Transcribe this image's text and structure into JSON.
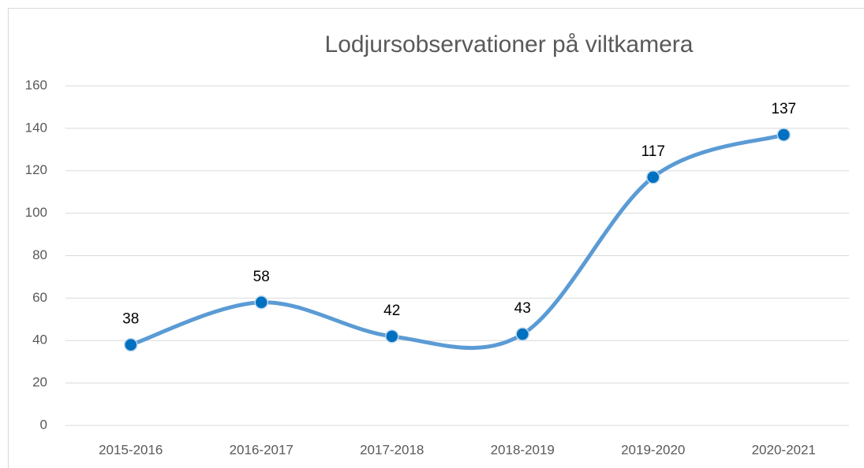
{
  "chart_data": {
    "type": "line",
    "title": "Lodjursobservationer på viltkamera",
    "categories": [
      "2015-2016",
      "2016-2017",
      "2017-2018",
      "2018-2019",
      "2019-2020",
      "2020-2021"
    ],
    "series": [
      {
        "name": "Lodjursobservationer",
        "color": "#5b9bd5",
        "values": [
          38,
          58,
          42,
          43,
          117,
          137
        ]
      }
    ],
    "smooth": true,
    "marker_color": "#0070c0",
    "ylim": [
      0,
      160
    ],
    "yticks": [
      0,
      20,
      40,
      60,
      80,
      100,
      120,
      140,
      160
    ],
    "grid": true
  }
}
